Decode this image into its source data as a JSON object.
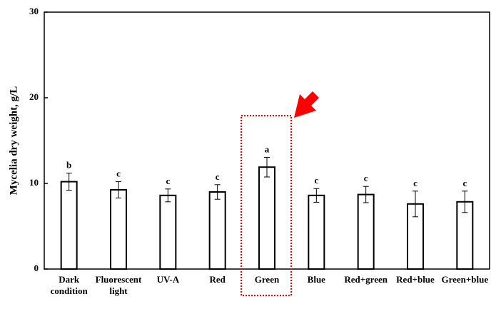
{
  "chart_data": {
    "type": "bar",
    "y_label": "Mycelia dry weight, g/L",
    "categories": [
      "Dark condition",
      "Fluorescent light",
      "UV-A",
      "Red",
      "Green",
      "Blue",
      "Red+green",
      "Red+blue",
      "Green+blue"
    ],
    "values": [
      10.2,
      9.25,
      8.6,
      9.0,
      11.9,
      8.6,
      8.7,
      7.6,
      7.85
    ],
    "errors": [
      1.0,
      0.95,
      0.75,
      0.85,
      1.15,
      0.8,
      0.95,
      1.5,
      1.25
    ],
    "annotations": [
      "b",
      "c",
      "c",
      "c",
      "a",
      "c",
      "c",
      "c",
      "c"
    ],
    "color": "#ffffff",
    "ylim": [
      0,
      30
    ],
    "yticks": [
      0,
      10,
      20,
      30
    ],
    "grid": false
  }
}
